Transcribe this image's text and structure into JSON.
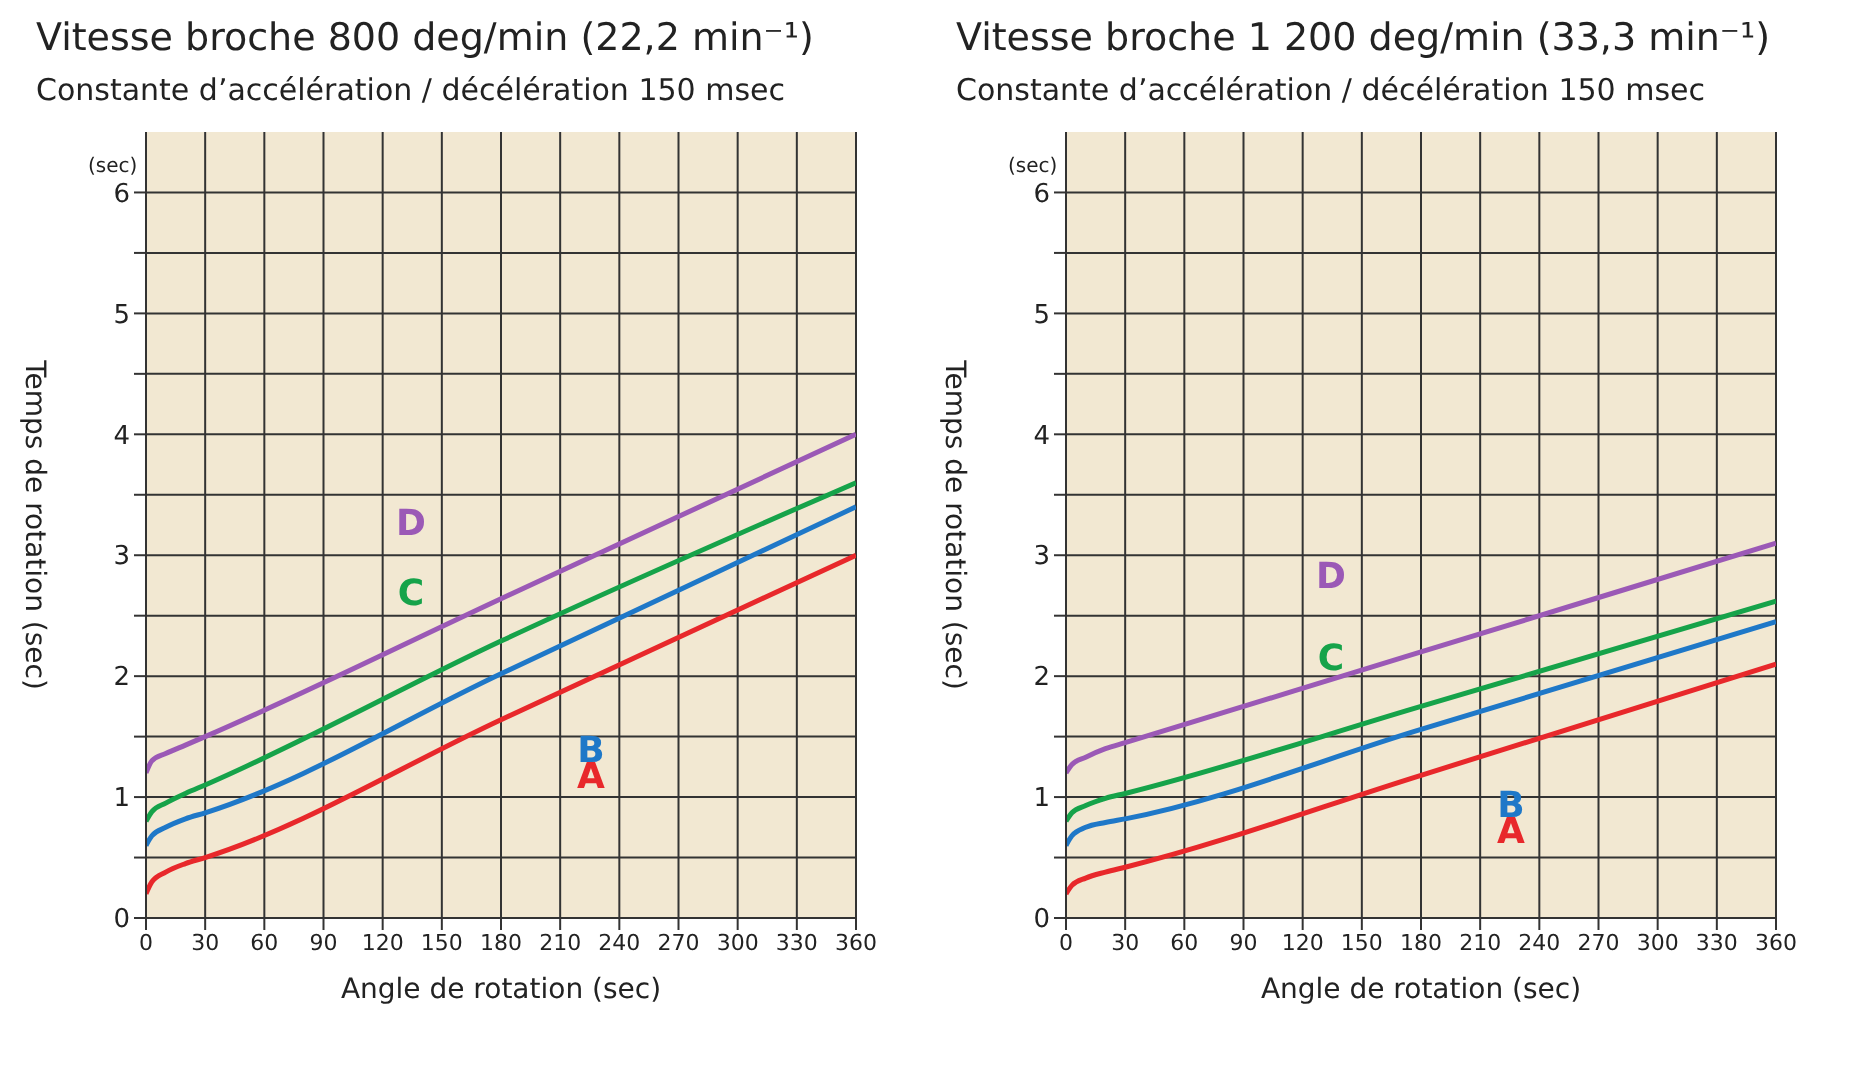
{
  "chart_data": [
    {
      "type": "line",
      "title": "Vitesse broche 800 deg/min (22,2 min⁻¹)",
      "subtitle": "Constante d’accélération / décélération 150 msec",
      "xlabel": "Angle de rotation (sec)",
      "ylabel": "Temps de rotation (sec)",
      "annotations": [
        "(sec)"
      ],
      "x": [
        0,
        3,
        10,
        20,
        30,
        180,
        360
      ],
      "xlim": [
        0,
        360
      ],
      "xticks": [
        0,
        30,
        60,
        90,
        120,
        150,
        180,
        210,
        240,
        270,
        300,
        330,
        360
      ],
      "ylim": [
        0,
        6.5
      ],
      "yticks": [
        0,
        {
          "value": 0.5,
          "label": null
        },
        1,
        {
          "value": 1.5,
          "label": null
        },
        2,
        {
          "value": 2.5,
          "label": null
        },
        3,
        {
          "value": 3.5,
          "label": null
        },
        4,
        {
          "value": 4.5,
          "label": null
        },
        5,
        {
          "value": 5.5,
          "label": null
        },
        6
      ],
      "grid": true,
      "series": [
        {
          "name": "A",
          "color": "#e8282b",
          "values": [
            0.2,
            0.3,
            0.38,
            0.45,
            0.5,
            1.64,
            3.0
          ]
        },
        {
          "name": "B",
          "color": "#1f78c8",
          "values": [
            0.6,
            0.68,
            0.75,
            0.82,
            0.87,
            2.02,
            3.4
          ]
        },
        {
          "name": "C",
          "color": "#16a34a",
          "values": [
            0.8,
            0.88,
            0.95,
            1.03,
            1.1,
            2.29,
            3.6
          ]
        },
        {
          "name": "D",
          "color": "#9b59b6",
          "values": [
            1.2,
            1.3,
            1.36,
            1.43,
            1.5,
            2.64,
            4.0
          ]
        }
      ]
    },
    {
      "type": "line",
      "title": "Vitesse broche 1 200 deg/min (33,3 min⁻¹)",
      "subtitle": "Constante d’accélération / décélération 150 msec",
      "xlabel": "Angle de rotation (sec)",
      "ylabel": "Temps de rotation (sec)",
      "annotations": [
        "(sec)"
      ],
      "x": [
        0,
        3,
        10,
        20,
        30,
        180,
        360
      ],
      "xlim": [
        0,
        360
      ],
      "xticks": [
        0,
        30,
        60,
        90,
        120,
        150,
        180,
        210,
        240,
        270,
        300,
        330,
        360
      ],
      "ylim": [
        0,
        6.5
      ],
      "yticks": [
        0,
        {
          "value": 0.5,
          "label": null
        },
        1,
        {
          "value": 1.5,
          "label": null
        },
        2,
        {
          "value": 2.5,
          "label": null
        },
        3,
        {
          "value": 3.5,
          "label": null
        },
        4,
        {
          "value": 4.5,
          "label": null
        },
        5,
        {
          "value": 5.5,
          "label": null
        },
        6
      ],
      "grid": true,
      "series": [
        {
          "name": "A",
          "color": "#e8282b",
          "values": [
            0.2,
            0.27,
            0.33,
            0.38,
            0.42,
            1.18,
            2.1
          ]
        },
        {
          "name": "B",
          "color": "#1f78c8",
          "values": [
            0.6,
            0.68,
            0.75,
            0.79,
            0.82,
            1.56,
            2.45
          ]
        },
        {
          "name": "C",
          "color": "#16a34a",
          "values": [
            0.8,
            0.87,
            0.93,
            0.99,
            1.03,
            1.75,
            2.62
          ]
        },
        {
          "name": "D",
          "color": "#9b59b6",
          "values": [
            1.2,
            1.27,
            1.33,
            1.4,
            1.45,
            2.2,
            3.1
          ]
        }
      ]
    }
  ]
}
